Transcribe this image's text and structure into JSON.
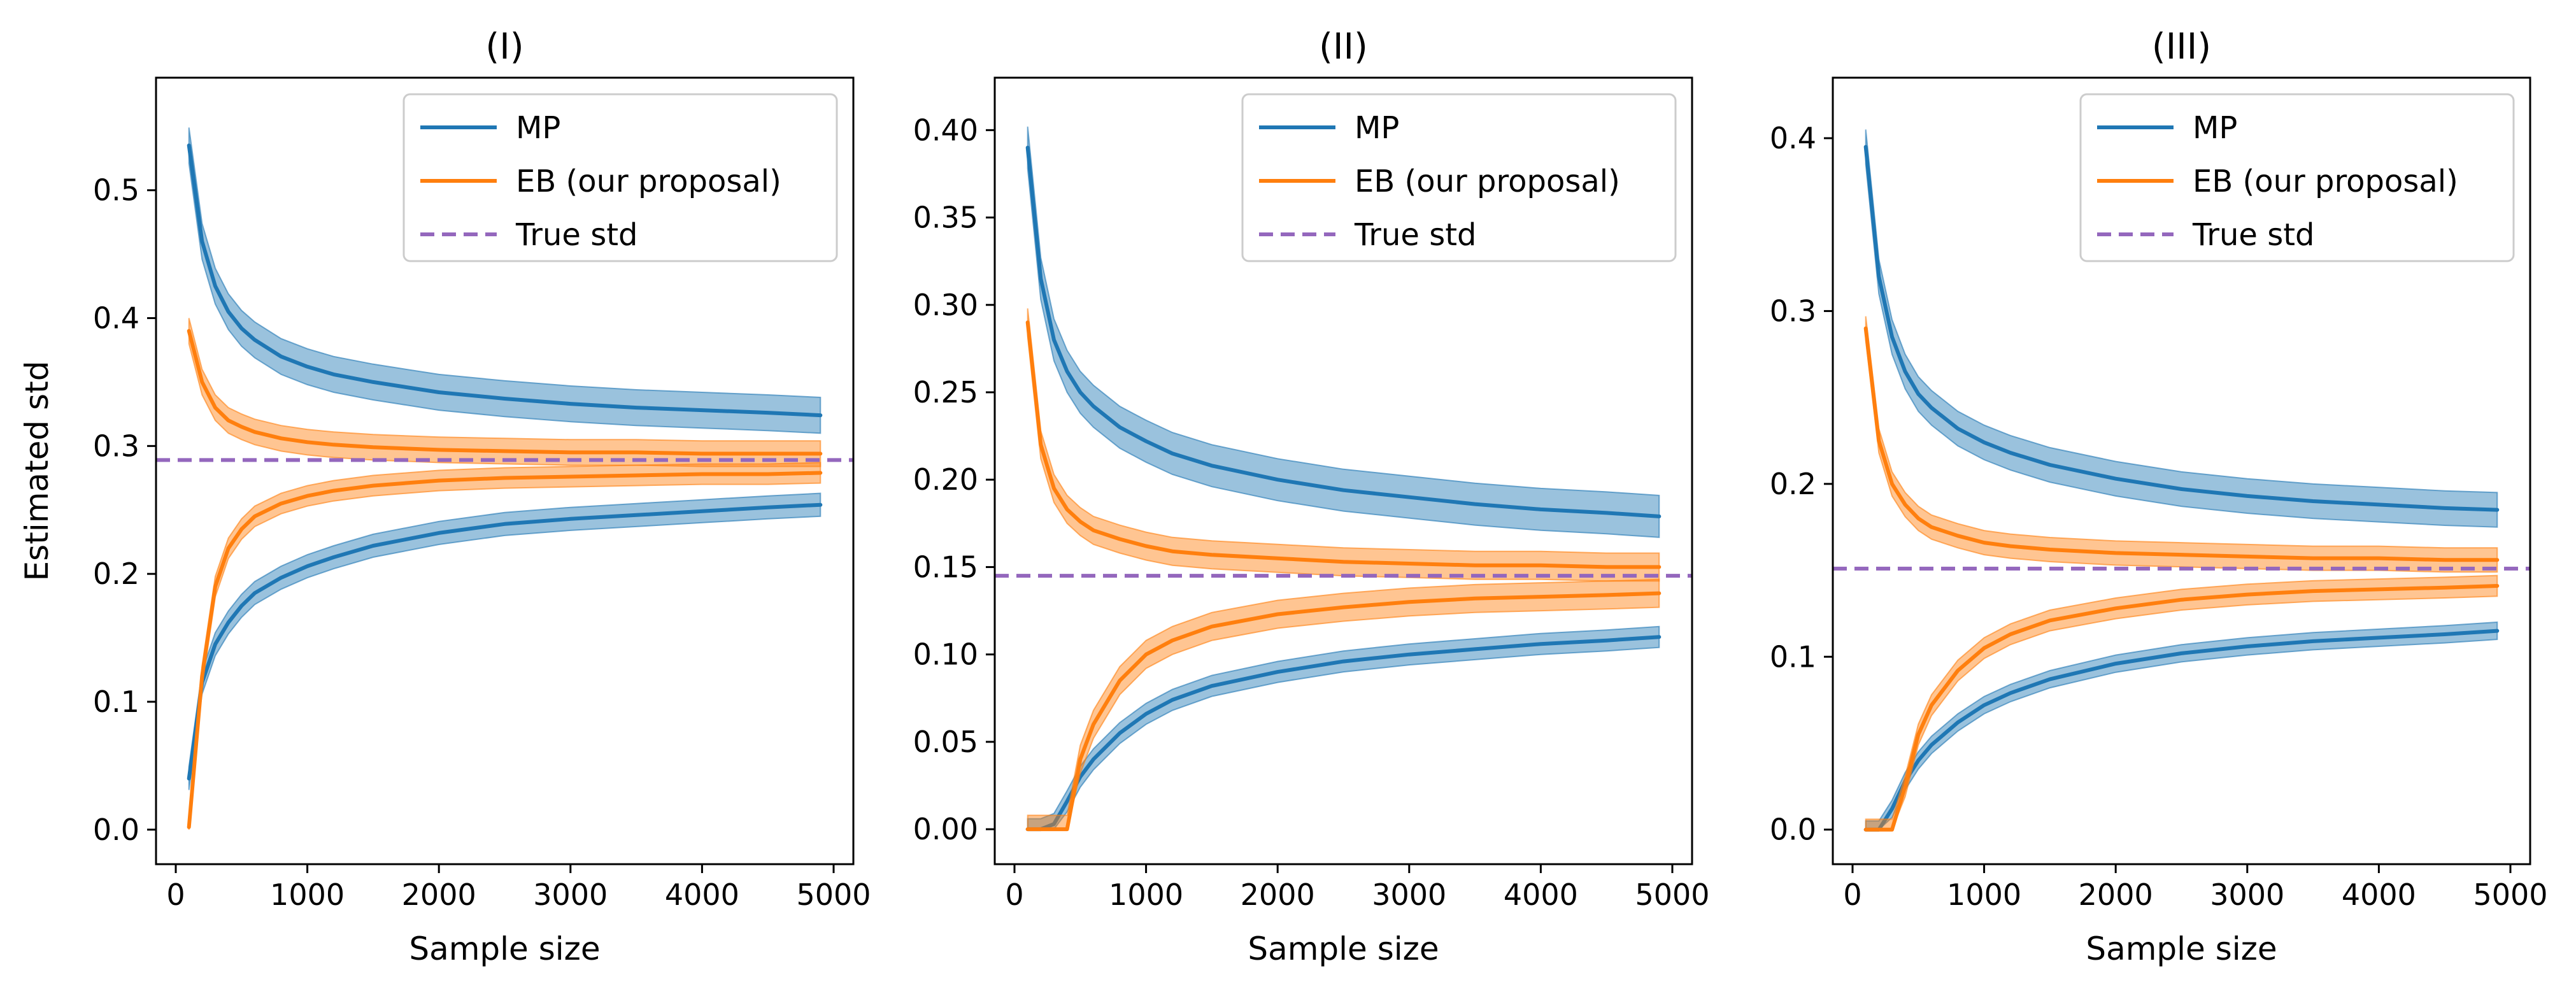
{
  "chart_data": [
    {
      "type": "line",
      "title": "(I)",
      "xlabel": "Sample size",
      "ylabel": "Estimated std",
      "xlim": [
        -150,
        5150
      ],
      "ylim": [
        -0.027,
        0.588
      ],
      "xticks": [
        0,
        1000,
        2000,
        3000,
        4000,
        5000
      ],
      "xtick_labels": [
        "0",
        "1000",
        "2000",
        "3000",
        "4000",
        "5000"
      ],
      "yticks": [
        0.0,
        0.1,
        0.2,
        0.3,
        0.4,
        0.5
      ],
      "ytick_labels": [
        "0.0",
        "0.1",
        "0.2",
        "0.3",
        "0.4",
        "0.5"
      ],
      "legend_position": "top-right",
      "legend": [
        "MP",
        "EB (our proposal)",
        "True std"
      ],
      "true_std": 0.289,
      "colors": {
        "MP": "#1f77b4",
        "EB": "#ff7f0e",
        "True std": "#9467bd"
      },
      "x": [
        100,
        200,
        300,
        400,
        500,
        600,
        800,
        1000,
        1200,
        1500,
        2000,
        2500,
        3000,
        3500,
        4000,
        4500,
        4900
      ],
      "series": [
        {
          "name": "MP",
          "curve": "upper",
          "values": [
            0.535,
            0.46,
            0.425,
            0.405,
            0.392,
            0.383,
            0.37,
            0.362,
            0.356,
            0.35,
            0.342,
            0.337,
            0.333,
            0.33,
            0.328,
            0.326,
            0.324
          ],
          "band": 0.014
        },
        {
          "name": "MP",
          "curve": "lower",
          "values": [
            0.04,
            0.115,
            0.145,
            0.162,
            0.175,
            0.185,
            0.197,
            0.206,
            0.213,
            0.222,
            0.232,
            0.239,
            0.243,
            0.246,
            0.249,
            0.252,
            0.254
          ],
          "band": 0.009
        },
        {
          "name": "EB (our proposal)",
          "curve": "upper",
          "values": [
            0.39,
            0.35,
            0.33,
            0.32,
            0.315,
            0.311,
            0.306,
            0.303,
            0.301,
            0.299,
            0.297,
            0.296,
            0.295,
            0.295,
            0.294,
            0.294,
            0.294
          ],
          "band": 0.01
        },
        {
          "name": "EB (our proposal)",
          "curve": "lower",
          "values": [
            0.002,
            0.12,
            0.19,
            0.22,
            0.235,
            0.245,
            0.255,
            0.261,
            0.265,
            0.269,
            0.273,
            0.275,
            0.276,
            0.277,
            0.278,
            0.278,
            0.279
          ],
          "band": 0.008
        }
      ]
    },
    {
      "type": "line",
      "title": "(II)",
      "xlabel": "Sample size",
      "ylabel": "",
      "xlim": [
        -150,
        5150
      ],
      "ylim": [
        -0.02,
        0.43
      ],
      "xticks": [
        0,
        1000,
        2000,
        3000,
        4000,
        5000
      ],
      "xtick_labels": [
        "0",
        "1000",
        "2000",
        "3000",
        "4000",
        "5000"
      ],
      "yticks": [
        0.0,
        0.05,
        0.1,
        0.15,
        0.2,
        0.25,
        0.3,
        0.35,
        0.4
      ],
      "ytick_labels": [
        "0.00",
        "0.05",
        "0.10",
        "0.15",
        "0.20",
        "0.25",
        "0.30",
        "0.35",
        "0.40"
      ],
      "legend_position": "top-right",
      "legend": [
        "MP",
        "EB (our proposal)",
        "True std"
      ],
      "true_std": 0.145,
      "colors": {
        "MP": "#1f77b4",
        "EB": "#ff7f0e",
        "True std": "#9467bd"
      },
      "x": [
        100,
        200,
        300,
        400,
        500,
        600,
        800,
        1000,
        1200,
        1500,
        2000,
        2500,
        3000,
        3500,
        4000,
        4500,
        4900
      ],
      "series": [
        {
          "name": "MP",
          "curve": "upper",
          "values": [
            0.39,
            0.315,
            0.28,
            0.262,
            0.25,
            0.242,
            0.23,
            0.222,
            0.215,
            0.208,
            0.2,
            0.194,
            0.19,
            0.186,
            0.183,
            0.181,
            0.179
          ],
          "band": 0.012
        },
        {
          "name": "MP",
          "curve": "lower",
          "values": [
            0.0,
            0.0,
            0.003,
            0.016,
            0.03,
            0.04,
            0.055,
            0.066,
            0.074,
            0.082,
            0.09,
            0.096,
            0.1,
            0.103,
            0.106,
            0.108,
            0.11
          ],
          "band": 0.006
        },
        {
          "name": "EB (our proposal)",
          "curve": "upper",
          "values": [
            0.29,
            0.22,
            0.195,
            0.183,
            0.176,
            0.171,
            0.166,
            0.162,
            0.159,
            0.157,
            0.155,
            0.153,
            0.152,
            0.151,
            0.151,
            0.15,
            0.15
          ],
          "band": 0.008
        },
        {
          "name": "EB (our proposal)",
          "curve": "lower",
          "values": [
            0.0,
            0.0,
            0.0,
            0.0,
            0.04,
            0.06,
            0.085,
            0.1,
            0.108,
            0.116,
            0.123,
            0.127,
            0.13,
            0.132,
            0.133,
            0.134,
            0.135
          ],
          "band": 0.008
        }
      ]
    },
    {
      "type": "line",
      "title": "(III)",
      "xlabel": "Sample size",
      "ylabel": "",
      "xlim": [
        -150,
        5150
      ],
      "ylim": [
        -0.02,
        0.435
      ],
      "xticks": [
        0,
        1000,
        2000,
        3000,
        4000,
        5000
      ],
      "xtick_labels": [
        "0",
        "1000",
        "2000",
        "3000",
        "4000",
        "5000"
      ],
      "yticks": [
        0.0,
        0.1,
        0.2,
        0.3,
        0.4
      ],
      "ytick_labels": [
        "0.0",
        "0.1",
        "0.2",
        "0.3",
        "0.4"
      ],
      "legend_position": "top-right",
      "legend": [
        "MP",
        "EB (our proposal)",
        "True std"
      ],
      "true_std": 0.151,
      "colors": {
        "MP": "#1f77b4",
        "EB": "#ff7f0e",
        "True std": "#9467bd"
      },
      "x": [
        100,
        200,
        300,
        400,
        500,
        600,
        800,
        1000,
        1200,
        1500,
        2000,
        2500,
        3000,
        3500,
        4000,
        4500,
        4900
      ],
      "series": [
        {
          "name": "MP",
          "curve": "upper",
          "values": [
            0.395,
            0.32,
            0.285,
            0.265,
            0.252,
            0.244,
            0.232,
            0.224,
            0.218,
            0.211,
            0.203,
            0.197,
            0.193,
            0.19,
            0.188,
            0.186,
            0.185
          ],
          "band": 0.01
        },
        {
          "name": "MP",
          "curve": "lower",
          "values": [
            0.0,
            0.0,
            0.012,
            0.028,
            0.04,
            0.049,
            0.062,
            0.072,
            0.079,
            0.087,
            0.096,
            0.102,
            0.106,
            0.109,
            0.111,
            0.113,
            0.115
          ],
          "band": 0.005
        },
        {
          "name": "EB (our proposal)",
          "curve": "upper",
          "values": [
            0.29,
            0.225,
            0.2,
            0.188,
            0.18,
            0.175,
            0.17,
            0.166,
            0.164,
            0.162,
            0.16,
            0.159,
            0.158,
            0.157,
            0.157,
            0.156,
            0.156
          ],
          "band": 0.007
        },
        {
          "name": "EB (our proposal)",
          "curve": "lower",
          "values": [
            0.0,
            0.0,
            0.0,
            0.025,
            0.055,
            0.072,
            0.092,
            0.105,
            0.113,
            0.121,
            0.128,
            0.133,
            0.136,
            0.138,
            0.139,
            0.14,
            0.141
          ],
          "band": 0.006
        }
      ]
    }
  ]
}
